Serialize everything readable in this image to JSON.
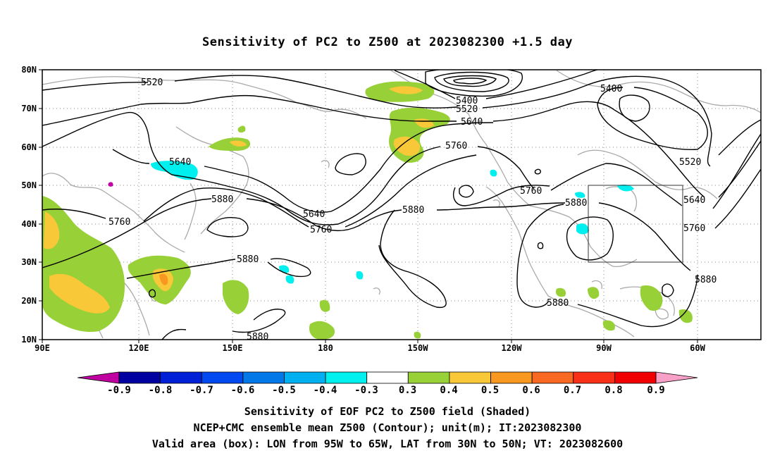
{
  "title": "Sensitivity of PC2 to Z500 at 2023082300 +1.5 day",
  "lat_labels": [
    "80N",
    "70N",
    "60N",
    "50N",
    "40N",
    "30N",
    "20N",
    "10N"
  ],
  "lon_labels": [
    "90E",
    "120E",
    "150E",
    "180",
    "150W",
    "120W",
    "90W",
    "60W"
  ],
  "contour_labels": [
    "5520",
    "5400",
    "5520",
    "5640",
    "5400",
    "5760",
    "5520",
    "5640",
    "5880",
    "5640",
    "5760",
    "5760",
    "5880",
    "5760",
    "5880",
    "5640",
    "5760",
    "5880",
    "5880",
    "5880",
    "5880"
  ],
  "colorbar": {
    "labels": [
      "-0.9",
      "-0.8",
      "-0.7",
      "-0.6",
      "-0.5",
      "-0.4",
      "-0.3",
      "0.3",
      "0.4",
      "0.5",
      "0.6",
      "0.7",
      "0.8",
      "0.9"
    ],
    "colors": [
      "#0000a0",
      "#0020d8",
      "#0048f0",
      "#0078e8",
      "#00b0f0",
      "#00f0f0",
      "#ffffff",
      "#98d038",
      "#f8c838",
      "#f89820",
      "#f86820",
      "#f83018",
      "#f00000"
    ],
    "low_end_color": "#c000a0",
    "high_end_color": "#f8a0c8"
  },
  "shading_colors": {
    "green": "#98d038",
    "yellow": "#f8c838",
    "orange": "#f89820",
    "cyan": "#00f0f0",
    "coast": "#aaaaaa"
  },
  "captions": [
    "Sensitivity of EOF PC2 to Z500 field (Shaded)",
    "NCEP+CMC ensemble mean Z500 (Contour); unit(m); IT:2023082300",
    "Valid area (box): LON from 95W to 65W, LAT from 30N to 50N; VT: 2023082600"
  ]
}
